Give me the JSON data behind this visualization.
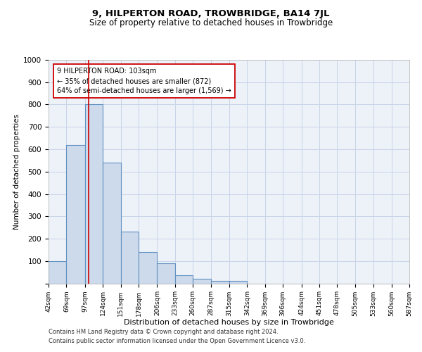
{
  "title": "9, HILPERTON ROAD, TROWBRIDGE, BA14 7JL",
  "subtitle": "Size of property relative to detached houses in Trowbridge",
  "xlabel": "Distribution of detached houses by size in Trowbridge",
  "ylabel": "Number of detached properties",
  "annotation_line1": "9 HILPERTON ROAD: 103sqm",
  "annotation_line2": "← 35% of detached houses are smaller (872)",
  "annotation_line3": "64% of semi-detached houses are larger (1,569) →",
  "footer_line1": "Contains HM Land Registry data © Crown copyright and database right 2024.",
  "footer_line2": "Contains public sector information licensed under the Open Government Licence v3.0.",
  "bar_edges": [
    42,
    69,
    97,
    124,
    151,
    178,
    206,
    233,
    260,
    287,
    315,
    342,
    369,
    396,
    424,
    451,
    478,
    505,
    533,
    560,
    587
  ],
  "bar_heights": [
    100,
    620,
    800,
    540,
    230,
    140,
    90,
    35,
    20,
    10,
    10,
    0,
    0,
    0,
    0,
    0,
    0,
    0,
    0,
    0
  ],
  "property_size": 103,
  "bar_color": "#ccdaec",
  "bar_edge_color": "#6090c0",
  "bar_linewidth": 0.8,
  "red_line_color": "#cc0000",
  "grid_color": "#c8d4e8",
  "background_color": "#edf2f9",
  "ylim": [
    0,
    1000
  ],
  "yticks": [
    0,
    100,
    200,
    300,
    400,
    500,
    600,
    700,
    800,
    900,
    1000
  ],
  "annotation_box_color": "#ffffff",
  "annotation_box_edge": "#cc0000",
  "title_fontsize": 9.5,
  "subtitle_fontsize": 8.5,
  "ylabel_fontsize": 7.5,
  "xlabel_fontsize": 8,
  "ytick_fontsize": 7.5,
  "xtick_fontsize": 6.5,
  "annotation_fontsize": 7,
  "footer_fontsize": 6
}
